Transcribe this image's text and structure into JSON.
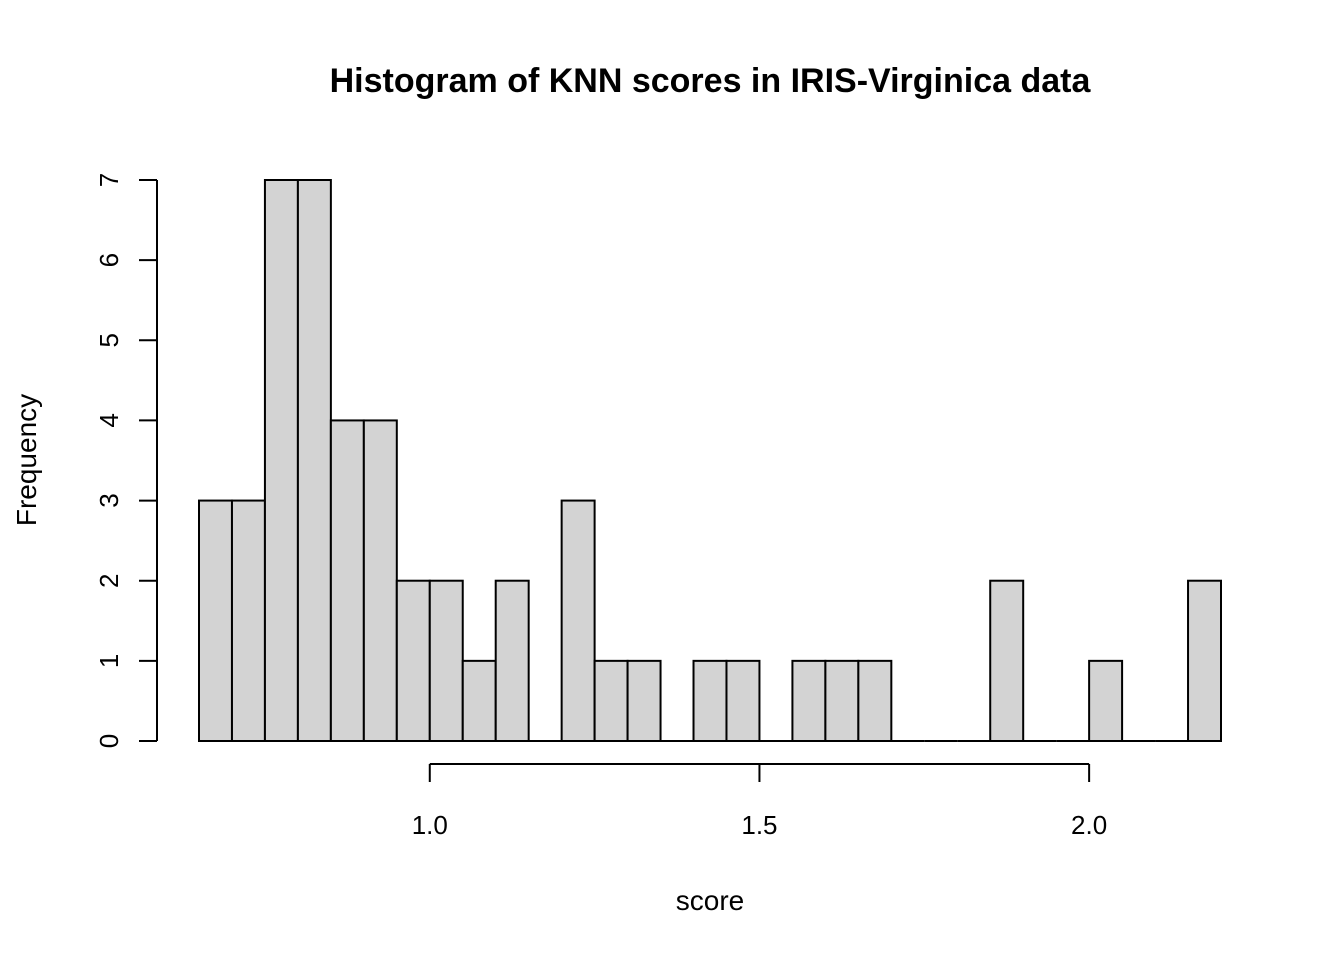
{
  "chart_data": {
    "type": "bar",
    "title": "Histogram of KNN scores in IRIS-Virginica data",
    "xlabel": "score",
    "ylabel": "Frequency",
    "bin_width": 0.05,
    "bins": [
      {
        "start": 0.65,
        "end": 0.7,
        "count": 3
      },
      {
        "start": 0.7,
        "end": 0.75,
        "count": 3
      },
      {
        "start": 0.75,
        "end": 0.8,
        "count": 7
      },
      {
        "start": 0.8,
        "end": 0.85,
        "count": 7
      },
      {
        "start": 0.85,
        "end": 0.9,
        "count": 4
      },
      {
        "start": 0.9,
        "end": 0.95,
        "count": 4
      },
      {
        "start": 0.95,
        "end": 1.0,
        "count": 2
      },
      {
        "start": 1.0,
        "end": 1.05,
        "count": 2
      },
      {
        "start": 1.05,
        "end": 1.1,
        "count": 1
      },
      {
        "start": 1.1,
        "end": 1.15,
        "count": 2
      },
      {
        "start": 1.15,
        "end": 1.2,
        "count": 0
      },
      {
        "start": 1.2,
        "end": 1.25,
        "count": 3
      },
      {
        "start": 1.25,
        "end": 1.3,
        "count": 1
      },
      {
        "start": 1.3,
        "end": 1.35,
        "count": 1
      },
      {
        "start": 1.35,
        "end": 1.4,
        "count": 0
      },
      {
        "start": 1.4,
        "end": 1.45,
        "count": 1
      },
      {
        "start": 1.45,
        "end": 1.5,
        "count": 1
      },
      {
        "start": 1.5,
        "end": 1.55,
        "count": 0
      },
      {
        "start": 1.55,
        "end": 1.6,
        "count": 1
      },
      {
        "start": 1.6,
        "end": 1.65,
        "count": 1
      },
      {
        "start": 1.65,
        "end": 1.7,
        "count": 1
      },
      {
        "start": 1.7,
        "end": 1.75,
        "count": 0
      },
      {
        "start": 1.75,
        "end": 1.8,
        "count": 0
      },
      {
        "start": 1.8,
        "end": 1.85,
        "count": 0
      },
      {
        "start": 1.85,
        "end": 1.9,
        "count": 2
      },
      {
        "start": 1.9,
        "end": 1.95,
        "count": 0
      },
      {
        "start": 1.95,
        "end": 2.0,
        "count": 0
      },
      {
        "start": 2.0,
        "end": 2.05,
        "count": 1
      },
      {
        "start": 2.05,
        "end": 2.1,
        "count": 0
      },
      {
        "start": 2.1,
        "end": 2.15,
        "count": 0
      },
      {
        "start": 2.15,
        "end": 2.2,
        "count": 2
      }
    ],
    "x_ticks": [
      {
        "value": 1.0,
        "label": "1.0"
      },
      {
        "value": 1.5,
        "label": "1.5"
      },
      {
        "value": 2.0,
        "label": "2.0"
      }
    ],
    "y_ticks": [
      {
        "value": 0,
        "label": "0"
      },
      {
        "value": 1,
        "label": "1"
      },
      {
        "value": 2,
        "label": "2"
      },
      {
        "value": 3,
        "label": "3"
      },
      {
        "value": 4,
        "label": "4"
      },
      {
        "value": 5,
        "label": "5"
      },
      {
        "value": 6,
        "label": "6"
      },
      {
        "value": 7,
        "label": "7"
      }
    ],
    "xlim": [
      0.65,
      2.2
    ],
    "ylim": [
      0,
      7
    ],
    "grid": false,
    "legend": "none",
    "colors": {
      "bar_fill": "#d3d3d3",
      "bar_stroke": "#000000",
      "background": "#ffffff"
    }
  }
}
